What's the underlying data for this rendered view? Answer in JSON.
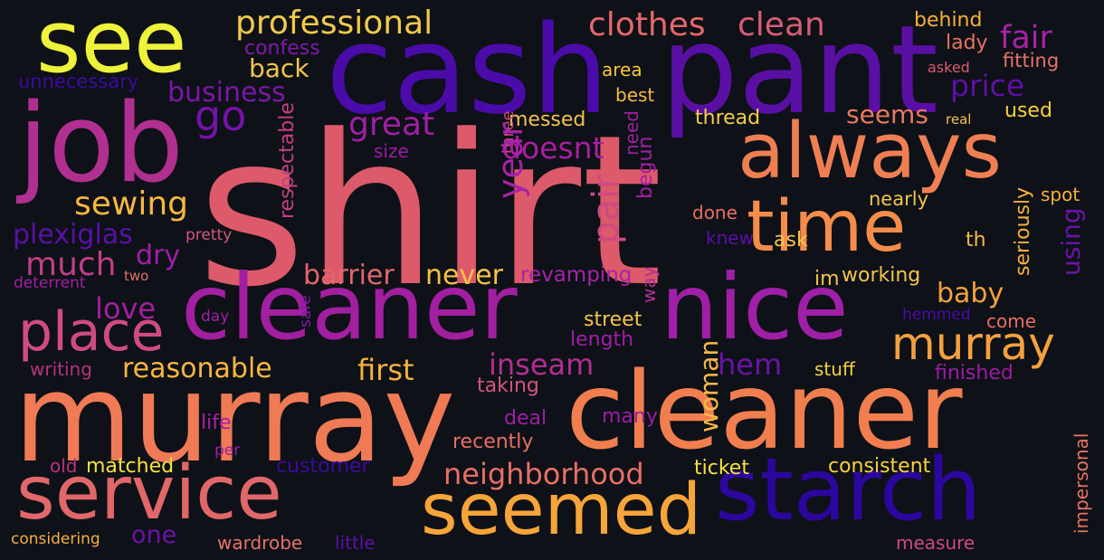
{
  "cloud": {
    "background": "#0e1117",
    "words": [
      {
        "text": "shirt",
        "color": "#dd5a6a"
      },
      {
        "text": "cash",
        "color": "#4a0ba8"
      },
      {
        "text": "pant",
        "color": "#5a0fa4"
      },
      {
        "text": "see",
        "color": "#eef23a"
      },
      {
        "text": "job",
        "color": "#b02f90"
      },
      {
        "text": "always",
        "color": "#ef7f52"
      },
      {
        "text": "time",
        "color": "#f58c4a"
      },
      {
        "text": "cleaner",
        "color": "#a11fa0"
      },
      {
        "text": "nice",
        "color": "#9f1fa6"
      },
      {
        "text": "murray",
        "color": "#ef7a55"
      },
      {
        "text": "cleaner",
        "color": "#f17e4f"
      },
      {
        "text": "service",
        "color": "#e0676a"
      },
      {
        "text": "seemed",
        "color": "#f6a53a"
      },
      {
        "text": "starch",
        "color": "#2c079e"
      },
      {
        "text": "place",
        "color": "#cf4c7f"
      },
      {
        "text": "murray",
        "color": "#f5a13e"
      },
      {
        "text": "professional",
        "color": "#f2c94a"
      },
      {
        "text": "clothes",
        "color": "#e5686a"
      },
      {
        "text": "clean",
        "color": "#d85c75"
      },
      {
        "text": "go",
        "color": "#7413a8"
      },
      {
        "text": "business",
        "color": "#7a17a7"
      },
      {
        "text": "back",
        "color": "#f4c54d"
      },
      {
        "text": "confess",
        "color": "#7f1aa6"
      },
      {
        "text": "unnecessary",
        "color": "#3d0aa0"
      },
      {
        "text": "fair",
        "color": "#a623a5"
      },
      {
        "text": "price",
        "color": "#5e0fa6"
      },
      {
        "text": "behind",
        "color": "#f5b13e"
      },
      {
        "text": "lady",
        "color": "#e77263"
      },
      {
        "text": "fitting",
        "color": "#e5736a"
      },
      {
        "text": "asked",
        "color": "#d85c75"
      },
      {
        "text": "area",
        "color": "#f8c83b"
      },
      {
        "text": "best",
        "color": "#f6ba44"
      },
      {
        "text": "great",
        "color": "#9e1fa6"
      },
      {
        "text": "doesnt",
        "color": "#a81fa0"
      },
      {
        "text": "messed",
        "color": "#f3c250"
      },
      {
        "text": "thread",
        "color": "#f5ce45"
      },
      {
        "text": "seems",
        "color": "#e9795e"
      },
      {
        "text": "real",
        "color": "#f3c250"
      },
      {
        "text": "used",
        "color": "#f6d240"
      },
      {
        "text": "sewing",
        "color": "#f7b742"
      },
      {
        "text": "plexiglas",
        "color": "#5a10a6"
      },
      {
        "text": "dry",
        "color": "#a01ea6"
      },
      {
        "text": "much",
        "color": "#c03e87"
      },
      {
        "text": "love",
        "color": "#a11fa3"
      },
      {
        "text": "size",
        "color": "#9c1ca5"
      },
      {
        "text": "three",
        "color": "#cd4a82"
      },
      {
        "text": "year",
        "color": "#a623a5"
      },
      {
        "text": "pair",
        "color": "#cd4a82"
      },
      {
        "text": "need",
        "color": "#a11fa0"
      },
      {
        "text": "begun",
        "color": "#a11fa3"
      },
      {
        "text": "respectable",
        "color": "#c63f85"
      },
      {
        "text": "pretty",
        "color": "#d05680"
      },
      {
        "text": "nearly",
        "color": "#f4c54d"
      },
      {
        "text": "spot",
        "color": "#f5b13e"
      },
      {
        "text": "done",
        "color": "#e86f65"
      },
      {
        "text": "knew",
        "color": "#5a0fa6"
      },
      {
        "text": "ask",
        "color": "#f4c54d"
      },
      {
        "text": "th",
        "color": "#f6ba44"
      },
      {
        "text": "seriously",
        "color": "#f5b13e"
      },
      {
        "text": "using",
        "color": "#6a13a8"
      },
      {
        "text": "two",
        "color": "#e5736a"
      },
      {
        "text": "deterrent",
        "color": "#a11fa3"
      },
      {
        "text": "barrier",
        "color": "#e0676a"
      },
      {
        "text": "never",
        "color": "#f6c244"
      },
      {
        "text": "revamping",
        "color": "#a623a5"
      },
      {
        "text": "way",
        "color": "#b02f90"
      },
      {
        "text": "im",
        "color": "#f3c250"
      },
      {
        "text": "working",
        "color": "#f3c250"
      },
      {
        "text": "baby",
        "color": "#f5a13e"
      },
      {
        "text": "day",
        "color": "#a11fa3"
      },
      {
        "text": "safe",
        "color": "#7f1aa6"
      },
      {
        "text": "street",
        "color": "#f4c54d"
      },
      {
        "text": "length",
        "color": "#9e1fa6"
      },
      {
        "text": "hemmed",
        "color": "#4a0ba8"
      },
      {
        "text": "come",
        "color": "#e86f65"
      },
      {
        "text": "writing",
        "color": "#b8327f"
      },
      {
        "text": "reasonable",
        "color": "#f7b742"
      },
      {
        "text": "first",
        "color": "#f5b13e"
      },
      {
        "text": "inseam",
        "color": "#b02f90"
      },
      {
        "text": "hem",
        "color": "#6a13a8"
      },
      {
        "text": "woman",
        "color": "#f6ba44"
      },
      {
        "text": "stuff",
        "color": "#f6d240"
      },
      {
        "text": "finished",
        "color": "#9c1ca5"
      },
      {
        "text": "taking",
        "color": "#d05680"
      },
      {
        "text": "life",
        "color": "#a623a5"
      },
      {
        "text": "deal",
        "color": "#9e1fa6"
      },
      {
        "text": "many",
        "color": "#9c1ca5"
      },
      {
        "text": "recently",
        "color": "#e86f65"
      },
      {
        "text": "per",
        "color": "#9c1ca5"
      },
      {
        "text": "old",
        "color": "#b8327f"
      },
      {
        "text": "matched",
        "color": "#f6e144"
      },
      {
        "text": "customer",
        "color": "#3d0aa0"
      },
      {
        "text": "neighborhood",
        "color": "#e86f65"
      },
      {
        "text": "ticket",
        "color": "#f6e144"
      },
      {
        "text": "consistent",
        "color": "#f6d240"
      },
      {
        "text": "impersonal",
        "color": "#e77263"
      },
      {
        "text": "one",
        "color": "#6a13a8"
      },
      {
        "text": "considering",
        "color": "#f5b13e"
      },
      {
        "text": "wardrobe",
        "color": "#e5736a"
      },
      {
        "text": "little",
        "color": "#5a10a6"
      },
      {
        "text": "measure",
        "color": "#cd4a82"
      }
    ]
  }
}
